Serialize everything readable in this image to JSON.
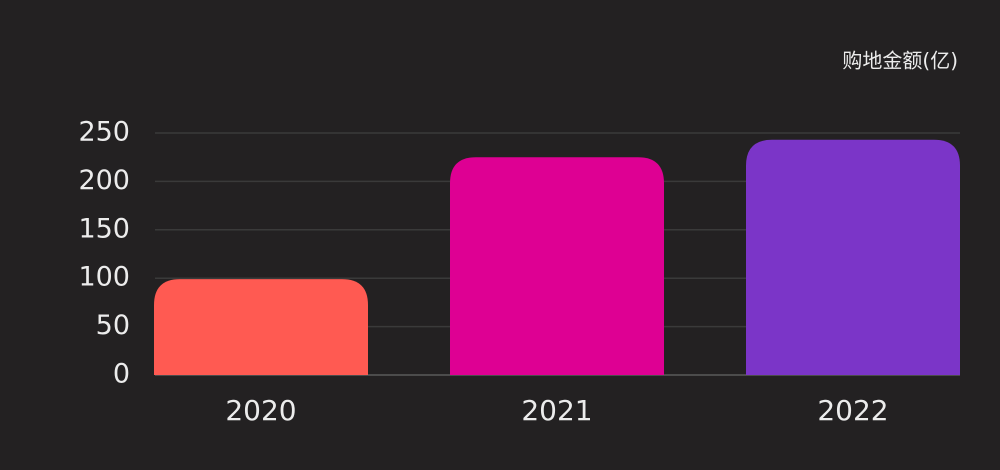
{
  "chart_data": {
    "type": "bar",
    "unit_label": "购地金额(亿)",
    "categories": [
      "2020",
      "2021",
      "2022"
    ],
    "values": [
      99,
      225,
      243
    ],
    "colors": [
      "#ff5a52",
      "#de0093",
      "#7b35c8"
    ],
    "ylim": [
      0,
      250
    ],
    "yticks": [
      0,
      50,
      100,
      150,
      200,
      250
    ],
    "grid": true
  }
}
